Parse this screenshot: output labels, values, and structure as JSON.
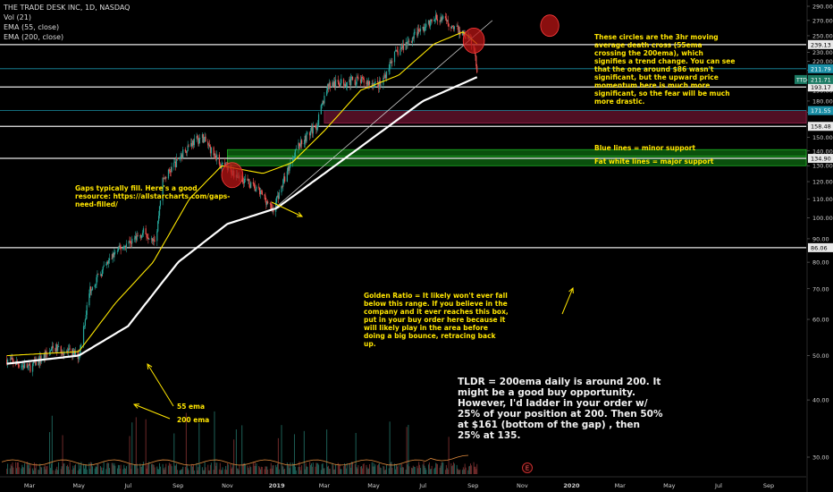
{
  "legend": {
    "symbol": "THE TRADE DESK INC, 1D, NASDAQ",
    "vol": "Vol (21)",
    "ema55": "EMA (55, close)",
    "ema200": "EMA (200, close)"
  },
  "annotations": {
    "circles_note": "These circles are the 3hr moving average death cross (55ema crossing the 200ema), which signifies a trend change. You can see that the one around $86 wasn't significant, but the upward price momentum here is much more significant, so the fear will be much more drastic.",
    "blue_lines": "Blue lines = minor support",
    "white_lines": "Fat white lines = major support",
    "gaps_note": "Gaps typically fill. Here's a good resource: https://allstarcharts.com/gaps-need-filled/",
    "golden_ratio": "Golden Ratio = It likely won't ever fall below this range. If you believe in the company and it ever reaches this box, put in your buy order here because it will likely play in the area before doing a big bounce, retracing back up.",
    "ema55_label": "55 ema",
    "ema200_label": "200 ema",
    "tldr": "TLDR = 200ema daily is around 200. It might be a good buy opportunity. However, I'd ladder in your order w/ 25% of your position at 200. Then 50% at $161 (bottom of the gap) , then 25% at 135.",
    "earnings_marker": "E"
  },
  "colors": {
    "background": "#000000",
    "up_candle": "#26a69a",
    "down_candle": "#ef5350",
    "ema55": "#ffe800",
    "ema200": "#ffffff",
    "annotation_text": "#ffe500",
    "gap_box": "#6b1430",
    "golden_box": "#0e6b12",
    "circle": "#b81414",
    "minor_support": "#1b8fa6",
    "major_support": "#e8e8e8",
    "last_price_badge": "#1b7a63"
  },
  "chart_data": {
    "type": "candlestick",
    "title": "THE TRADE DESK INC, 1D, NASDAQ",
    "y_scale": "log",
    "ylim": [
      26,
      295
    ],
    "y_ticks": [
      290,
      270,
      250,
      230,
      220,
      210,
      200,
      190,
      180,
      170,
      160,
      150,
      140,
      130,
      120,
      110,
      100,
      90,
      80,
      70,
      60,
      50,
      40,
      30
    ],
    "x_ticks": [
      "Mar",
      "May",
      "Jul",
      "Sep",
      "Nov",
      "2019",
      "Mar",
      "May",
      "Jul",
      "Sep",
      "Nov",
      "2020",
      "Mar",
      "May",
      "Jul",
      "Sep"
    ],
    "x_tick_dates": [
      "2018-03-01",
      "2018-05-01",
      "2018-07-01",
      "2018-09-01",
      "2018-11-01",
      "2019-01-01",
      "2019-03-01",
      "2019-05-01",
      "2019-07-01",
      "2019-09-01",
      "2019-11-01",
      "2020-01-01",
      "2020-03-01",
      "2020-05-01",
      "2020-07-01",
      "2020-09-01"
    ],
    "price_path": [
      {
        "date": "2018-02-01",
        "close": 49
      },
      {
        "date": "2018-03-01",
        "close": 47
      },
      {
        "date": "2018-04-01",
        "close": 52
      },
      {
        "date": "2018-05-01",
        "close": 50
      },
      {
        "date": "2018-05-15",
        "close": 70
      },
      {
        "date": "2018-06-15",
        "close": 84
      },
      {
        "date": "2018-07-20",
        "close": 93
      },
      {
        "date": "2018-08-05",
        "close": 90
      },
      {
        "date": "2018-08-12",
        "close": 120
      },
      {
        "date": "2018-09-15",
        "close": 145
      },
      {
        "date": "2018-10-01",
        "close": 150
      },
      {
        "date": "2018-10-25",
        "close": 130
      },
      {
        "date": "2018-11-20",
        "close": 122
      },
      {
        "date": "2018-12-15",
        "close": 112
      },
      {
        "date": "2018-12-27",
        "close": 104
      },
      {
        "date": "2019-01-25",
        "close": 142
      },
      {
        "date": "2019-02-20",
        "close": 160
      },
      {
        "date": "2019-03-05",
        "close": 195
      },
      {
        "date": "2019-04-10",
        "close": 200
      },
      {
        "date": "2019-05-10",
        "close": 195
      },
      {
        "date": "2019-05-25",
        "close": 225
      },
      {
        "date": "2019-06-25",
        "close": 255
      },
      {
        "date": "2019-07-20",
        "close": 275
      },
      {
        "date": "2019-08-10",
        "close": 260
      },
      {
        "date": "2019-08-25",
        "close": 248
      },
      {
        "date": "2019-09-01",
        "close": 240
      },
      {
        "date": "2019-09-06",
        "close": 211.71
      }
    ],
    "ema55_path": [
      {
        "date": "2018-02-01",
        "value": 50
      },
      {
        "date": "2018-05-01",
        "value": 51
      },
      {
        "date": "2018-06-15",
        "value": 65
      },
      {
        "date": "2018-08-01",
        "value": 80
      },
      {
        "date": "2018-09-15",
        "value": 110
      },
      {
        "date": "2018-10-25",
        "value": 130
      },
      {
        "date": "2018-12-15",
        "value": 125
      },
      {
        "date": "2019-01-20",
        "value": 132
      },
      {
        "date": "2019-03-01",
        "value": 155
      },
      {
        "date": "2019-04-15",
        "value": 190
      },
      {
        "date": "2019-06-01",
        "value": 205
      },
      {
        "date": "2019-07-15",
        "value": 240
      },
      {
        "date": "2019-08-20",
        "value": 255
      },
      {
        "date": "2019-09-06",
        "value": 240
      }
    ],
    "ema200_path": [
      {
        "date": "2018-02-01",
        "value": 48
      },
      {
        "date": "2018-05-01",
        "value": 50
      },
      {
        "date": "2018-07-01",
        "value": 58
      },
      {
        "date": "2018-09-01",
        "value": 80
      },
      {
        "date": "2018-11-01",
        "value": 97
      },
      {
        "date": "2019-01-01",
        "value": 105
      },
      {
        "date": "2019-03-01",
        "value": 125
      },
      {
        "date": "2019-05-01",
        "value": 150
      },
      {
        "date": "2019-07-01",
        "value": 180
      },
      {
        "date": "2019-09-06",
        "value": 203
      }
    ],
    "levels": [
      {
        "price": 239.13,
        "label": "239.13",
        "kind": "major"
      },
      {
        "price": 211.79,
        "label": "211.79",
        "kind": "minor"
      },
      {
        "price": 193.17,
        "label": "193.17",
        "kind": "major"
      },
      {
        "price": 171.55,
        "label": "171.55",
        "kind": "minor"
      },
      {
        "price": 158.48,
        "label": "158.48",
        "kind": "major"
      },
      {
        "price": 134.9,
        "label": "134.90",
        "kind": "major"
      },
      {
        "price": 86.06,
        "label": "86.06",
        "kind": "major"
      }
    ],
    "last_price": {
      "value": 211.71,
      "label": "211.71",
      "badge": "TTD"
    },
    "zones": [
      {
        "name": "gap",
        "from_date": "2019-03-01",
        "top": 171.55,
        "bottom": 161
      },
      {
        "name": "golden ratio",
        "from_date": "2018-11-01",
        "top": 141,
        "bottom": 130
      }
    ],
    "trendline": [
      {
        "date": "2018-12-27",
        "value": 104
      },
      {
        "date": "2019-09-25",
        "value": 270
      }
    ],
    "circles": [
      {
        "date": "2018-11-07",
        "value": 124
      },
      {
        "date": "2019-09-02",
        "value": 244
      },
      {
        "date": "2019-12-05",
        "value": 263
      }
    ]
  }
}
